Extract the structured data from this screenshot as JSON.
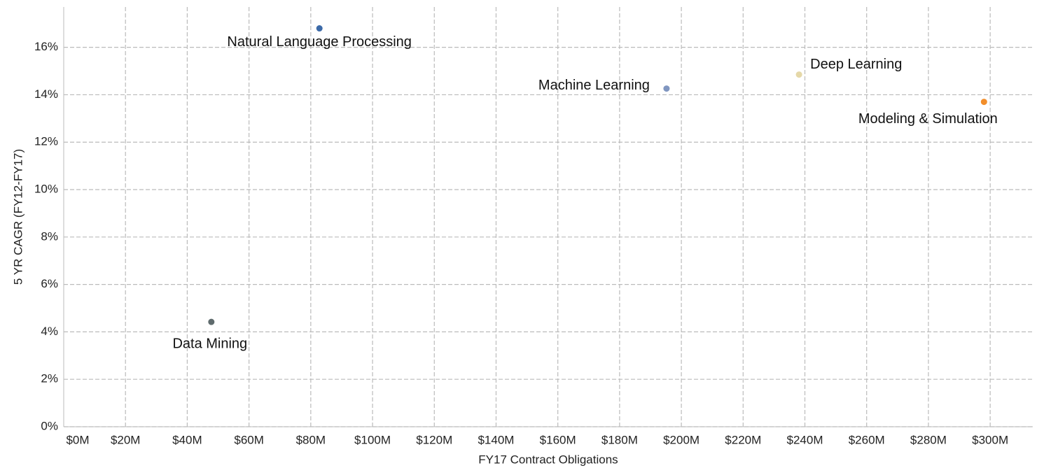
{
  "chart_data": {
    "type": "scatter",
    "x_label": "FY17 Contract Obligations",
    "y_label": "5 YR CAGR (FY12-FY17)",
    "series": [
      {
        "name": "Natural Language Processing",
        "color": "#3c6aa8",
        "x": [
          82.8
        ],
        "values": [
          16.8
        ]
      },
      {
        "name": "Machine Learning",
        "color": "#8096c0",
        "x": [
          195.2
        ],
        "values": [
          14.26
        ]
      },
      {
        "name": "Deep Learning",
        "color": "#e5d8a8",
        "x": [
          238.1
        ],
        "values": [
          14.85
        ]
      },
      {
        "name": "Modeling & Simulation",
        "color": "#f28e2b",
        "x": [
          298
        ],
        "values": [
          13.7
        ]
      },
      {
        "name": "Data Mining",
        "color": "#5f6b6d",
        "x": [
          47.8
        ],
        "values": [
          4.42
        ]
      }
    ],
    "xlim": [
      0,
      313.8
    ],
    "ylim": [
      0,
      17.7
    ],
    "xticks": [
      {
        "value": 0,
        "label": "$0M"
      },
      {
        "value": 20,
        "label": "$20M"
      },
      {
        "value": 40,
        "label": "$40M"
      },
      {
        "value": 60,
        "label": "$60M"
      },
      {
        "value": 80,
        "label": "$80M"
      },
      {
        "value": 100,
        "label": "$100M"
      },
      {
        "value": 120,
        "label": "$120M"
      },
      {
        "value": 140,
        "label": "$140M"
      },
      {
        "value": 160,
        "label": "$160M"
      },
      {
        "value": 180,
        "label": "$180M"
      },
      {
        "value": 200,
        "label": "$200M"
      },
      {
        "value": 220,
        "label": "$220M"
      },
      {
        "value": 240,
        "label": "$240M"
      },
      {
        "value": 260,
        "label": "$260M"
      },
      {
        "value": 280,
        "label": "$280M"
      },
      {
        "value": 300,
        "label": "$300M"
      }
    ],
    "yticks": [
      {
        "value": 0,
        "label": "0%"
      },
      {
        "value": 2,
        "label": "2%"
      },
      {
        "value": 4,
        "label": "4%"
      },
      {
        "value": 6,
        "label": "6%"
      },
      {
        "value": 8,
        "label": "8%"
      },
      {
        "value": 10,
        "label": "10%"
      },
      {
        "value": 12,
        "label": "12%"
      },
      {
        "value": 14,
        "label": "14%"
      },
      {
        "value": 16,
        "label": "16%"
      }
    ],
    "grid": true
  }
}
